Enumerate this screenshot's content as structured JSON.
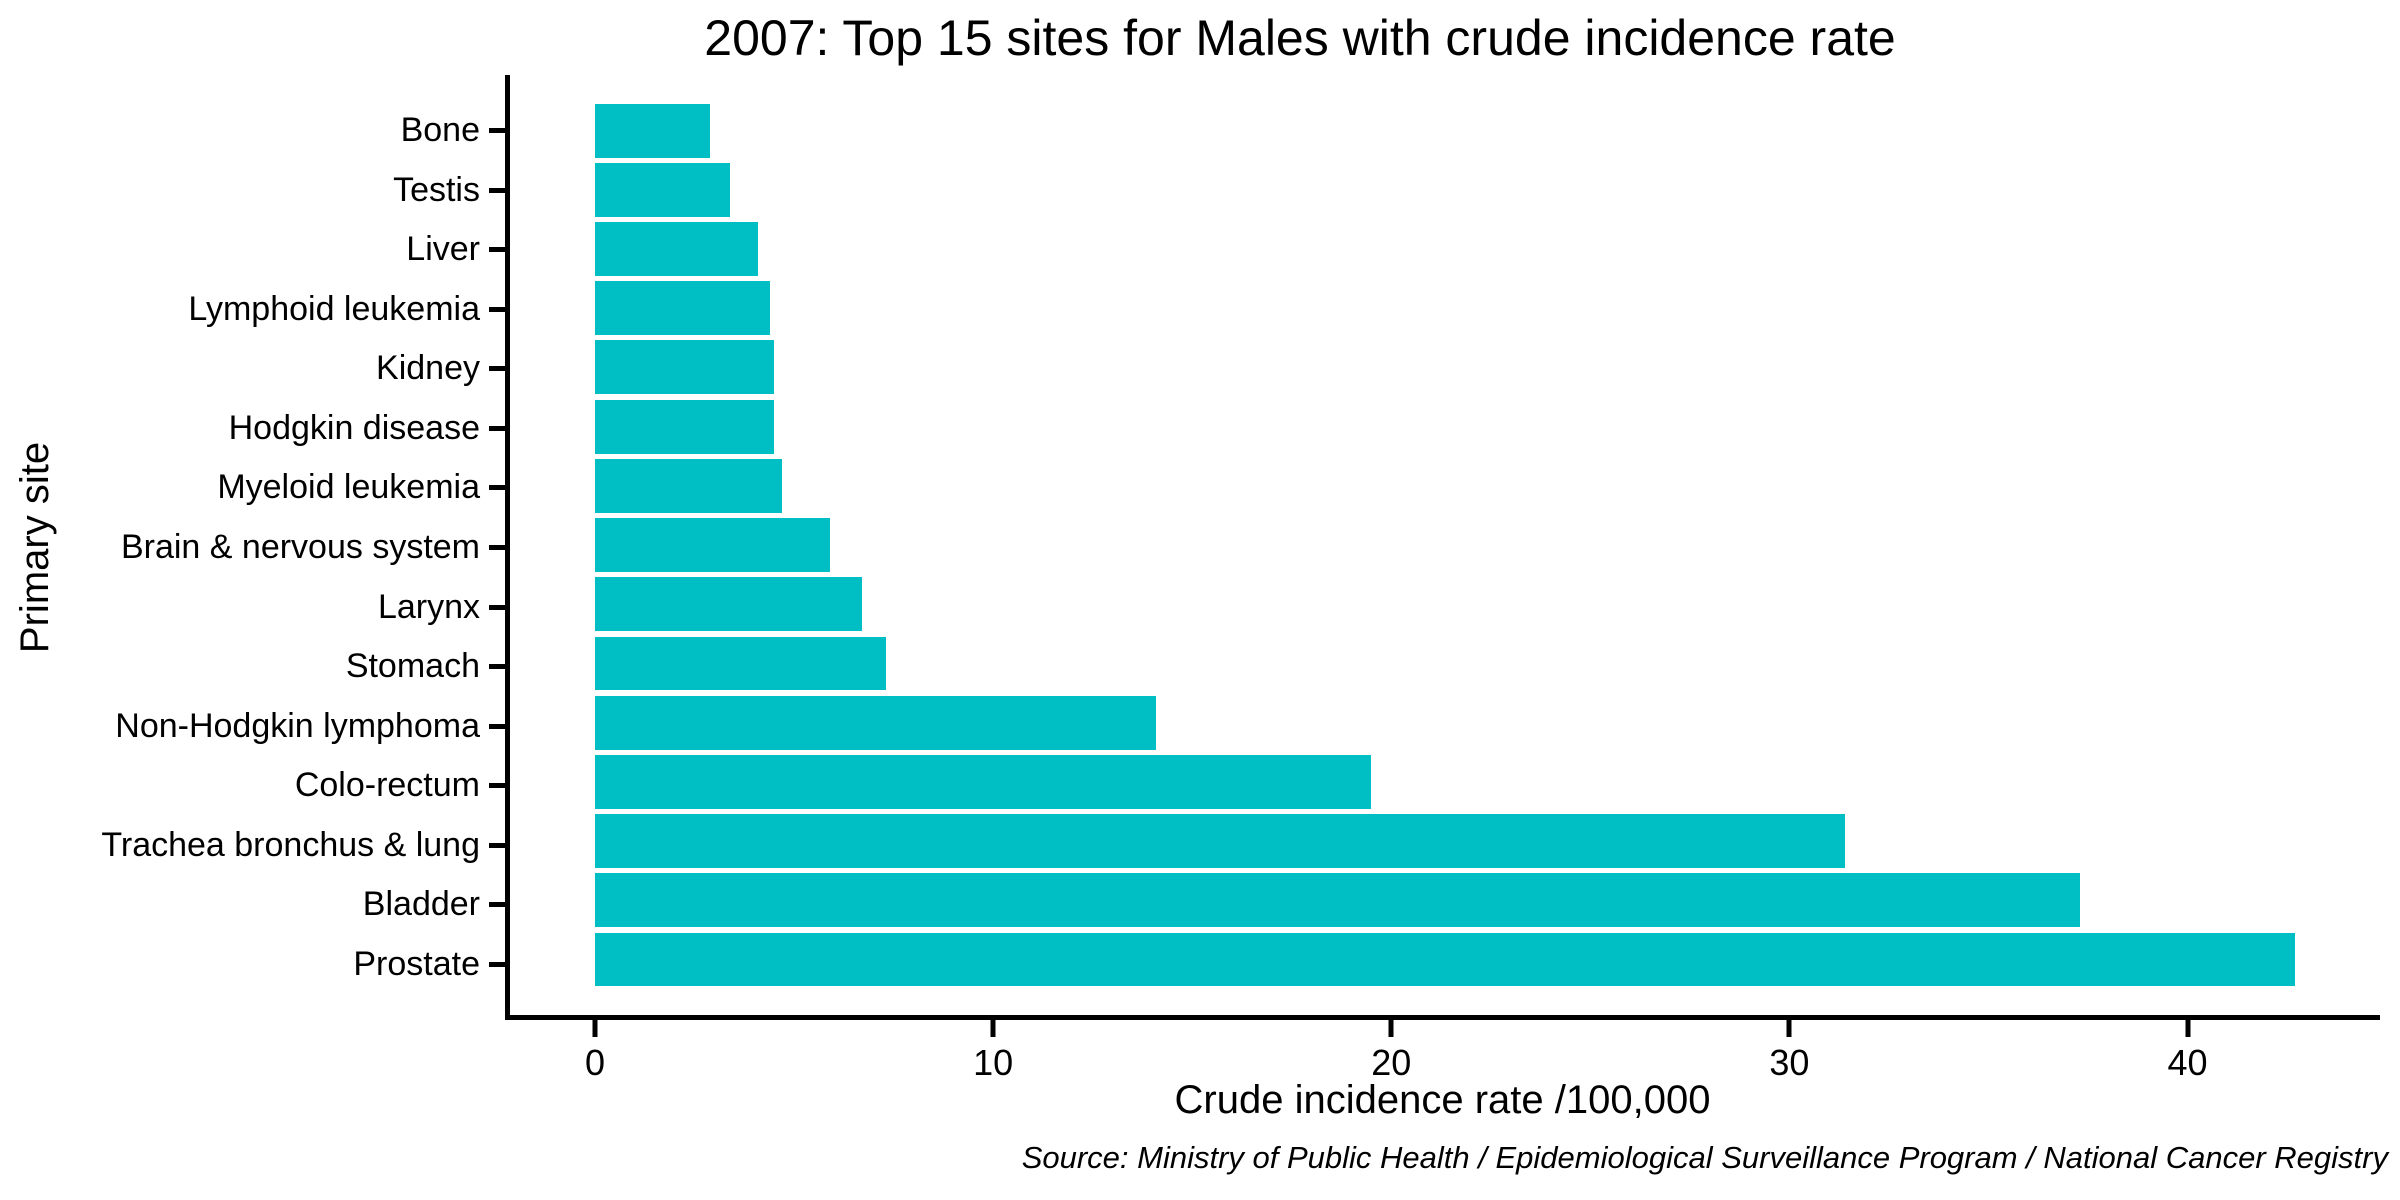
{
  "chart_data": {
    "type": "bar",
    "orientation": "horizontal",
    "title": "2007: Top 15 sites for Males with crude incidence rate",
    "xlabel": "Crude incidence rate /100,000",
    "ylabel": "Primary site",
    "source_note": "Source: Ministry of Public Health / Epidemiological Surveillance Program / National Cancer Registry",
    "categories": [
      "Bone",
      "Testis",
      "Liver",
      "Lymphoid leukemia",
      "Kidney",
      "Hodgkin disease",
      "Myeloid leukemia",
      "Brain & nervous system",
      "Larynx",
      "Stomach",
      "Non-Hodgkin lymphoma",
      "Colo-rectum",
      "Trachea bronchus & lung",
      "Bladder",
      "Prostate"
    ],
    "values": [
      2.9,
      3.4,
      4.1,
      4.4,
      4.5,
      4.5,
      4.7,
      5.9,
      6.7,
      7.3,
      14.1,
      19.5,
      31.4,
      37.3,
      42.7
    ],
    "xticks": [
      0,
      10,
      20,
      30,
      40
    ],
    "xlim": [
      -2.135,
      44.835
    ],
    "bar_color": "#00BFC4",
    "axis_color": "#000000",
    "background": "#FFFFFF",
    "grid": false,
    "legend": false
  }
}
